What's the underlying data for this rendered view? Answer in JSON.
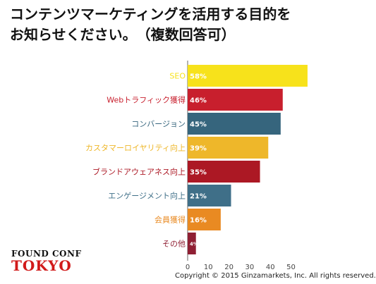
{
  "title_line1": "コンテンツマーケティングを活用する目的を",
  "title_line2": "お知らせください。　（複数回答可）",
  "chart_data": {
    "type": "bar",
    "orientation": "horizontal",
    "categories": [
      "SEO",
      "Webトラフィック獲得",
      "コンバージョン",
      "カスタマーロイヤリティ向上",
      "ブランドアウェアネス向上",
      "エンゲージメント向上",
      "会員獲得",
      "その他"
    ],
    "values": [
      58,
      46,
      45,
      39,
      35,
      21,
      16,
      4
    ],
    "value_labels": [
      "58%",
      "46%",
      "45%",
      "39%",
      "35%",
      "21%",
      "16%",
      "4%"
    ],
    "colors": [
      "#f7e21b",
      "#c81f2d",
      "#36657d",
      "#eeb72a",
      "#ac1824",
      "#3f6f88",
      "#e98a22",
      "#8f1f33"
    ],
    "xticks": [
      "0",
      "10",
      "20",
      "30",
      "40",
      "50"
    ],
    "xlim": [
      0,
      60
    ],
    "grid": false,
    "legend": "none"
  },
  "logo": {
    "line1": "FOUND CONF",
    "line2": "TOKYO"
  },
  "copyright": "Copyright © 2015 Ginzamarkets, Inc. All rights reserved."
}
